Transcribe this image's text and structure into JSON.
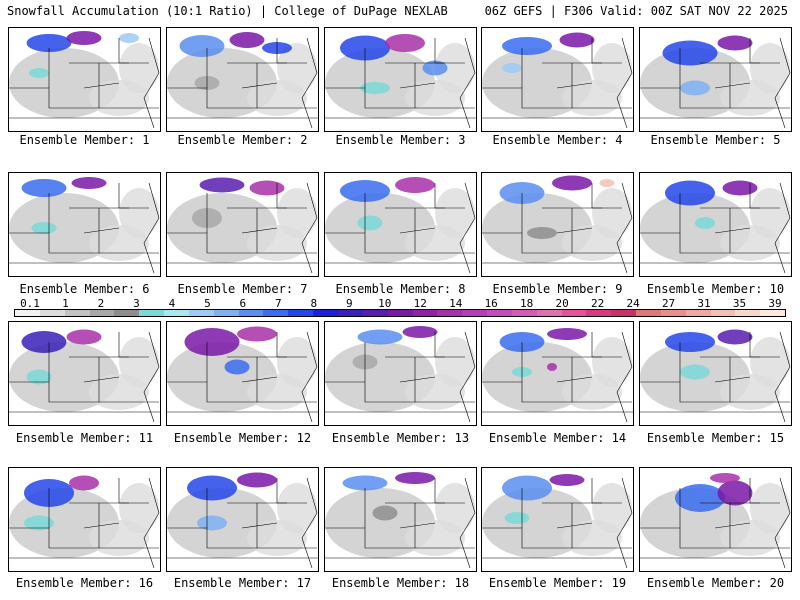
{
  "header": {
    "left": "Snowfall Accumulation (10:1 Ratio) | College of DuPage NEXLAB",
    "right": "06Z GEFS | F306 Valid: 00Z SAT NOV 22 2025"
  },
  "panels": [
    {
      "label": "Ensemble Member: 1"
    },
    {
      "label": "Ensemble Member: 2"
    },
    {
      "label": "Ensemble Member: 3"
    },
    {
      "label": "Ensemble Member: 4"
    },
    {
      "label": "Ensemble Member: 5"
    },
    {
      "label": "Ensemble Member: 6"
    },
    {
      "label": "Ensemble Member: 7"
    },
    {
      "label": "Ensemble Member: 8"
    },
    {
      "label": "Ensemble Member: 9"
    },
    {
      "label": "Ensemble Member: 10"
    },
    {
      "label": "Ensemble Member: 11"
    },
    {
      "label": "Ensemble Member: 12"
    },
    {
      "label": "Ensemble Member: 13"
    },
    {
      "label": "Ensemble Member: 14"
    },
    {
      "label": "Ensemble Member: 15"
    },
    {
      "label": "Ensemble Member: 16"
    },
    {
      "label": "Ensemble Member: 17"
    },
    {
      "label": "Ensemble Member: 18"
    },
    {
      "label": "Ensemble Member: 19"
    },
    {
      "label": "Ensemble Member: 20"
    }
  ],
  "colorbar": {
    "ticks": [
      "0.1",
      "1",
      "2",
      "3",
      "4",
      "5",
      "6",
      "7",
      "8",
      "9",
      "10",
      "12",
      "14",
      "16",
      "18",
      "20",
      "22",
      "24",
      "27",
      "31",
      "35",
      "39"
    ],
    "colors": [
      "#f2f2f2",
      "#dcdcdc",
      "#c2c2c2",
      "#a8a8a8",
      "#8e8e8e",
      "#7ad8d8",
      "#a8e8f0",
      "#9ecbf5",
      "#7fb0f2",
      "#5a8ef0",
      "#3a6cf0",
      "#2346e8",
      "#1a22d8",
      "#3a20b8",
      "#5a1cb0",
      "#7a18a8",
      "#9420a8",
      "#a830a8",
      "#b83ab8",
      "#c848c0",
      "#d85ab8",
      "#e070b0",
      "#e8509a",
      "#d83a80",
      "#c8306a",
      "#e07878",
      "#e89088",
      "#f0a8a0",
      "#f4c0b4",
      "#f8d8c8",
      "#fce8dc"
    ]
  },
  "colors": {
    "background": "#ffffff",
    "text": "#000000",
    "land": "#ffffff",
    "border": "#000000"
  }
}
